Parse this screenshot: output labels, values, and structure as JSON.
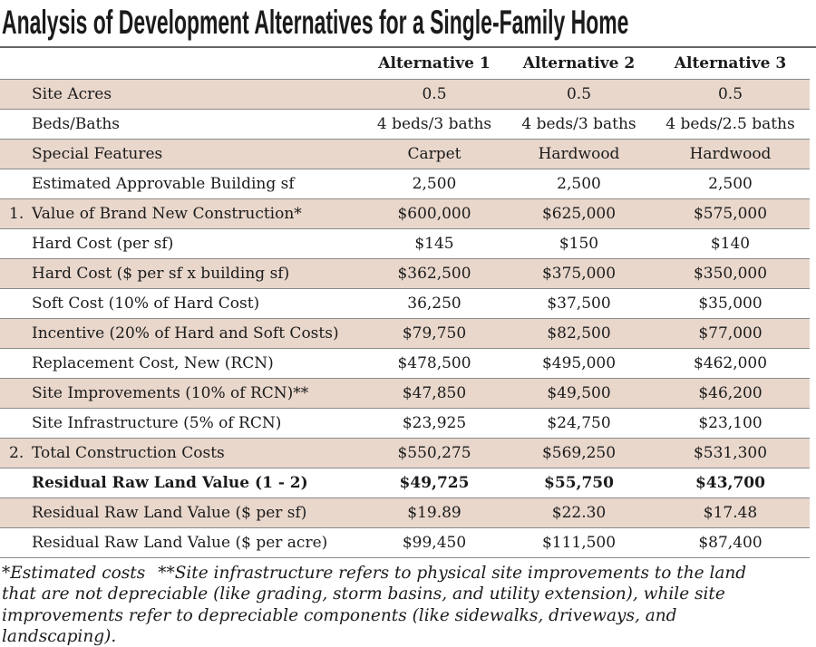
{
  "title": "Analysis of Development Alternatives for a Single-Family Home",
  "columns": [
    "Alternative 1",
    "Alternative 2",
    "Alternative 3"
  ],
  "rows": [
    {
      "num": "",
      "label": "Site Acres",
      "values": [
        "0.5",
        "0.5",
        "0.5"
      ],
      "shaded": true,
      "bold": false
    },
    {
      "num": "",
      "label": "Beds/Baths",
      "values": [
        "4 beds/3 baths",
        "4 beds/3 baths",
        "4 beds/2.5 baths"
      ],
      "shaded": false,
      "bold": false
    },
    {
      "num": "",
      "label": "Special Features",
      "values": [
        "Carpet",
        "Hardwood",
        "Hardwood"
      ],
      "shaded": true,
      "bold": false
    },
    {
      "num": "",
      "label": "Estimated Approvable Building sf",
      "values": [
        "2,500",
        "2,500",
        "2,500"
      ],
      "shaded": false,
      "bold": false
    },
    {
      "num": "1.",
      "label": "Value of Brand New Construction*",
      "values": [
        "$600,000",
        "$625,000",
        "$575,000"
      ],
      "shaded": true,
      "bold": false
    },
    {
      "num": "",
      "label": "Hard Cost (per sf)",
      "values": [
        "$145",
        "$150",
        "$140"
      ],
      "shaded": false,
      "bold": false
    },
    {
      "num": "",
      "label": "Hard Cost ($ per sf x building sf)",
      "values": [
        "$362,500",
        "$375,000",
        "$350,000"
      ],
      "shaded": true,
      "bold": false
    },
    {
      "num": "",
      "label": "Soft Cost (10% of Hard Cost)",
      "values": [
        "36,250",
        "$37,500",
        "$35,000"
      ],
      "shaded": false,
      "bold": false
    },
    {
      "num": "",
      "label": "Incentive (20% of Hard and Soft Costs)",
      "values": [
        "$79,750",
        "$82,500",
        "$77,000"
      ],
      "shaded": true,
      "bold": false
    },
    {
      "num": "",
      "label": "Replacement Cost, New (RCN)",
      "values": [
        "$478,500",
        "$495,000",
        "$462,000"
      ],
      "shaded": false,
      "bold": false
    },
    {
      "num": "",
      "label": "Site Improvements (10% of RCN)**",
      "values": [
        "$47,850",
        "$49,500",
        "$46,200"
      ],
      "shaded": true,
      "bold": false
    },
    {
      "num": "",
      "label": "Site Infrastructure (5% of RCN)",
      "values": [
        "$23,925",
        "$24,750",
        "$23,100"
      ],
      "shaded": false,
      "bold": false
    },
    {
      "num": "2.",
      "label": "Total Construction Costs",
      "values": [
        "$550,275",
        "$569,250",
        "$531,300"
      ],
      "shaded": true,
      "bold": false
    },
    {
      "num": "",
      "label": "Residual Raw Land Value (1 - 2)",
      "values": [
        "$49,725",
        "$55,750",
        "$43,700"
      ],
      "shaded": false,
      "bold": true
    },
    {
      "num": "",
      "label": "Residual Raw Land Value ($ per sf)",
      "values": [
        "$19.89",
        "$22.30",
        "$17.48"
      ],
      "shaded": true,
      "bold": false
    },
    {
      "num": "",
      "label": "Residual Raw Land Value ($ per acre)",
      "values": [
        "$99,450",
        "$111,500",
        "$87,400"
      ],
      "shaded": false,
      "bold": false
    }
  ],
  "footnote": {
    "part1": "*Estimated costs",
    "part2": "**Site infrastructure refers to physical site improvements to the land that are not depreciable (like grading, storm basins, and utility extension), while site improvements refer to depreciable components (like sidewalks, driveways, and landscaping)."
  },
  "colors": {
    "row_shade": "#e9d7cc",
    "rule": "#8a8a8a",
    "text": "#1b1b1b",
    "title_rule": "#666666"
  }
}
